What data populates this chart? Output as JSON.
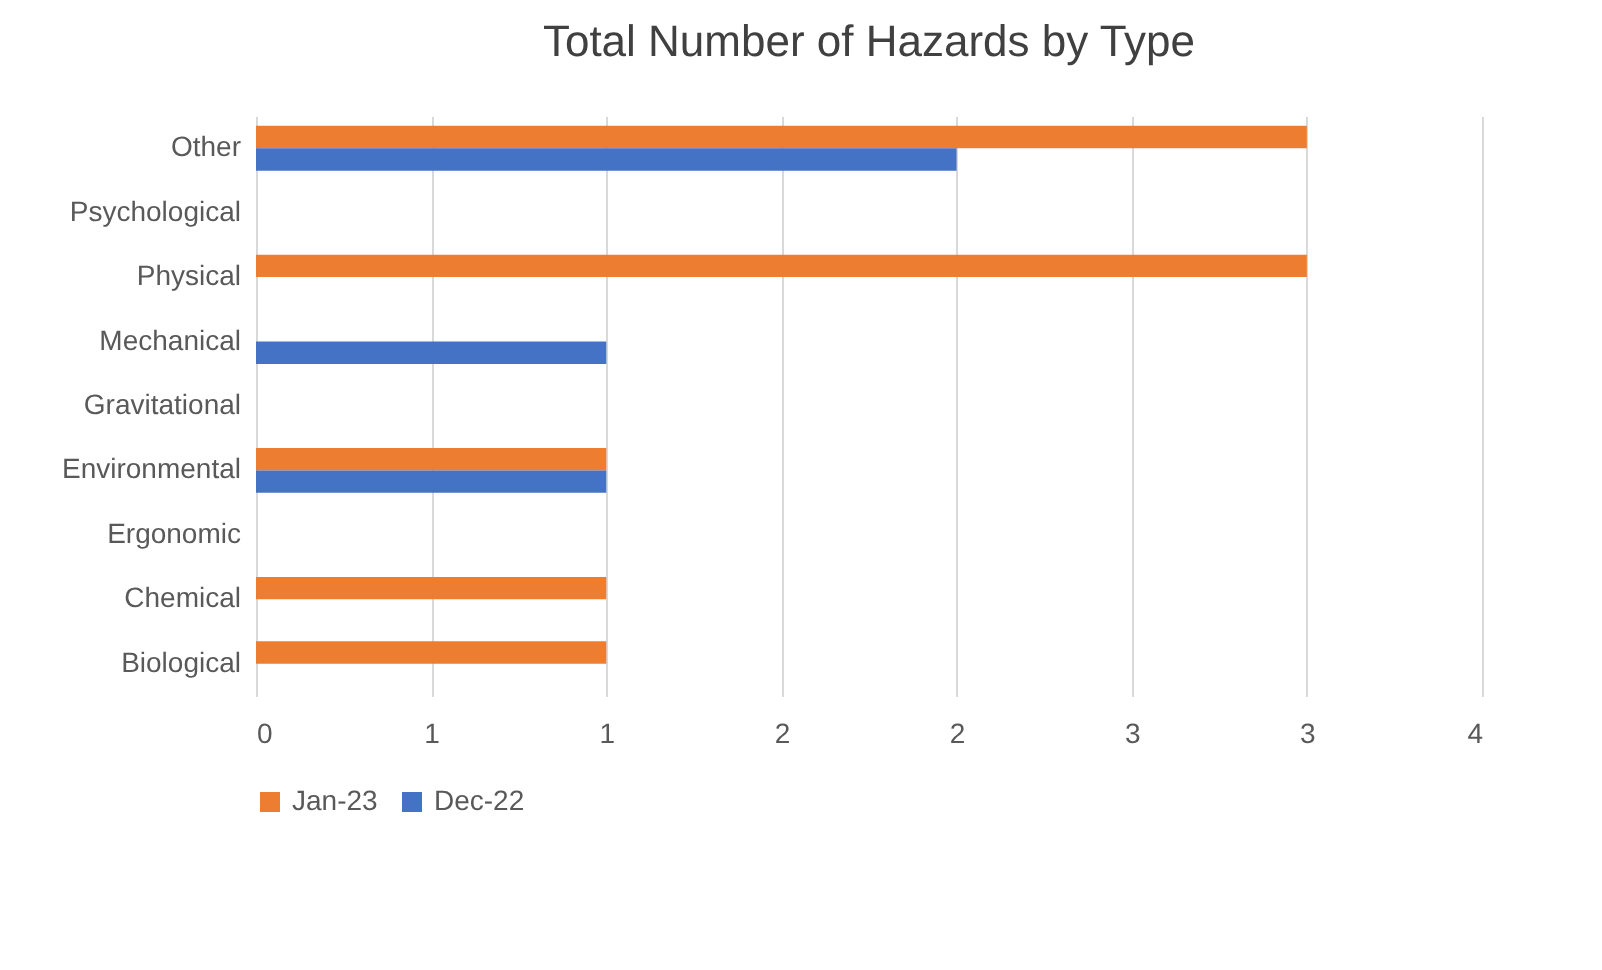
{
  "chart_data": {
    "type": "bar",
    "title": "Total Number of Hazards by Type",
    "orientation": "horizontal",
    "categories": [
      "Other",
      "Psychological",
      "Physical",
      "Mechanical",
      "Gravitational",
      "Environmental",
      "Ergonomic",
      "Chemical",
      "Biological"
    ],
    "series": [
      {
        "name": "Jan-23",
        "color": "#ed7d31",
        "values": [
          3,
          0,
          3,
          0,
          0,
          1,
          0,
          1,
          1
        ]
      },
      {
        "name": "Dec-22",
        "color": "#4472c4",
        "values": [
          2,
          0,
          0,
          1,
          0,
          1,
          0,
          0,
          0
        ]
      }
    ],
    "xlim": [
      0,
      3.5
    ],
    "xticks": [
      {
        "value": 0,
        "label": "0"
      },
      {
        "value": 0.5,
        "label": "1"
      },
      {
        "value": 1,
        "label": "1"
      },
      {
        "value": 1.5,
        "label": "2"
      },
      {
        "value": 2,
        "label": "2"
      },
      {
        "value": 2.5,
        "label": "3"
      },
      {
        "value": 3,
        "label": "3"
      },
      {
        "value": 3.5,
        "label": "4"
      }
    ],
    "grid": "x",
    "legend": "bottom"
  }
}
